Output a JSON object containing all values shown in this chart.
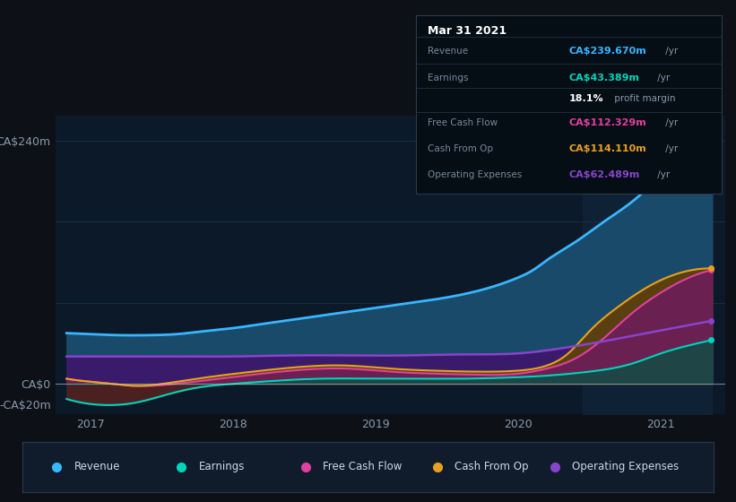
{
  "bg_color": "#0d1117",
  "plot_bg_color": "#0b1929",
  "title": "Mar 31 2021",
  "ylim": [
    -30,
    265
  ],
  "xlim_start": 2016.75,
  "xlim_end": 2021.45,
  "x_ticks": [
    2017,
    2018,
    2019,
    2020,
    2021
  ],
  "y_tick_values": [
    240,
    0,
    -20
  ],
  "y_tick_labels": [
    "CA$240m",
    "CA$0",
    "-CA$20m"
  ],
  "series_colors": {
    "revenue": "#38b6ff",
    "earnings": "#00d4bb",
    "free_cash_flow": "#e040a0",
    "cash_from_op": "#e8a020",
    "operating_expenses": "#8844cc"
  },
  "fill_colors": {
    "revenue": "#1a4a6a",
    "earnings_neg": "#4a2020",
    "earnings_pos": "#005544",
    "operating_expenses": "#3a1a6a",
    "cash_from_op": "#5a4010",
    "free_cash_flow": "#6a2050"
  },
  "legend_items": [
    {
      "label": "Revenue",
      "color": "#38b6ff"
    },
    {
      "label": "Earnings",
      "color": "#00d4bb"
    },
    {
      "label": "Free Cash Flow",
      "color": "#e040a0"
    },
    {
      "label": "Cash From Op",
      "color": "#e8a020"
    },
    {
      "label": "Operating Expenses",
      "color": "#8844cc"
    }
  ],
  "tooltip": {
    "date": "Mar 31 2021",
    "rows": [
      {
        "label": "Revenue",
        "value": "CA$239.670m",
        "suffix": " /yr",
        "color": "#38b6ff",
        "sep": true
      },
      {
        "label": "Earnings",
        "value": "CA$43.389m",
        "suffix": " /yr",
        "color": "#00d4bb",
        "sep": false
      },
      {
        "label": "",
        "value": "18.1%",
        "suffix": " profit margin",
        "color": "#ffffff",
        "sep": true
      },
      {
        "label": "Free Cash Flow",
        "value": "CA$112.329m",
        "suffix": " /yr",
        "color": "#e040a0",
        "sep": true
      },
      {
        "label": "Cash From Op",
        "value": "CA$114.110m",
        "suffix": " /yr",
        "color": "#e8a020",
        "sep": true
      },
      {
        "label": "Operating Expenses",
        "value": "CA$62.489m",
        "suffix": " /yr",
        "color": "#8844cc",
        "sep": false
      }
    ]
  },
  "revenue_x": [
    2016.83,
    2017.0,
    2017.2,
    2017.4,
    2017.6,
    2017.8,
    2018.0,
    2018.2,
    2018.4,
    2018.6,
    2018.8,
    2019.0,
    2019.2,
    2019.4,
    2019.6,
    2019.8,
    2020.0,
    2020.1,
    2020.2,
    2020.4,
    2020.6,
    2020.8,
    2021.0,
    2021.2,
    2021.35
  ],
  "revenue_y": [
    50,
    49,
    48,
    48,
    49,
    52,
    55,
    59,
    63,
    67,
    71,
    75,
    79,
    83,
    88,
    95,
    105,
    112,
    122,
    140,
    160,
    180,
    205,
    228,
    240
  ],
  "earnings_x": [
    2016.83,
    2017.0,
    2017.15,
    2017.3,
    2017.5,
    2017.7,
    2018.0,
    2018.3,
    2018.6,
    2019.0,
    2019.3,
    2019.6,
    2019.9,
    2020.2,
    2020.5,
    2020.8,
    2021.0,
    2021.2,
    2021.35
  ],
  "earnings_y": [
    -15,
    -20,
    -21,
    -19,
    -12,
    -5,
    0,
    3,
    5,
    5,
    5,
    5,
    6,
    8,
    12,
    20,
    30,
    38,
    43
  ],
  "fcf_x": [
    2016.83,
    2017.0,
    2017.15,
    2017.3,
    2017.6,
    2017.9,
    2018.2,
    2018.5,
    2018.8,
    2019.1,
    2019.4,
    2019.7,
    2020.0,
    2020.2,
    2020.4,
    2020.6,
    2020.8,
    2021.0,
    2021.2,
    2021.35
  ],
  "fcf_y": [
    5,
    2,
    0,
    -2,
    0,
    5,
    10,
    14,
    15,
    12,
    10,
    9,
    10,
    15,
    25,
    45,
    70,
    90,
    105,
    112
  ],
  "cop_x": [
    2016.83,
    2017.0,
    2017.15,
    2017.3,
    2017.6,
    2017.9,
    2018.2,
    2018.5,
    2018.8,
    2019.1,
    2019.4,
    2019.7,
    2020.0,
    2020.2,
    2020.35,
    2020.5,
    2020.7,
    2020.9,
    2021.1,
    2021.35
  ],
  "cop_y": [
    5,
    2,
    0,
    -2,
    2,
    8,
    13,
    17,
    18,
    15,
    13,
    12,
    13,
    18,
    30,
    52,
    76,
    95,
    108,
    114
  ],
  "opex_x": [
    2016.83,
    2017.0,
    2017.3,
    2017.6,
    2018.0,
    2018.4,
    2018.8,
    2019.2,
    2019.6,
    2020.0,
    2020.3,
    2020.6,
    2020.9,
    2021.2,
    2021.35
  ],
  "opex_y": [
    27,
    27,
    27,
    27,
    27,
    28,
    28,
    28,
    29,
    30,
    35,
    42,
    50,
    58,
    62
  ],
  "shade_start": 2020.45,
  "grid_color": "#1e3050",
  "zero_line_color": "#ccddee",
  "end_x": 2021.35
}
